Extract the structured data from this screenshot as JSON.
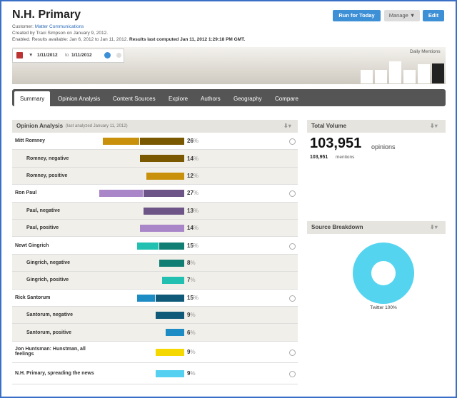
{
  "header": {
    "title": "N.H. Primary",
    "customer_label": "Customer:",
    "customer": "Matter Communications",
    "created": "Created by Traci Simpson on January 9, 2012.",
    "enabled": "Enabled. Results available: Jan 6, 2012 to Jan 11, 2012.",
    "computed": "Results last computed Jan 11, 2012 1:29:18 PM GMT.",
    "buttons": [
      "Run for Today",
      "Manage ▼",
      "Edit"
    ]
  },
  "date_range": {
    "from": "1/11/2012",
    "to_label": "to",
    "to": "1/11/2012",
    "sparkline_label": "Daily Mentions",
    "sparkline": [
      19,
      19,
      31,
      19,
      27,
      28
    ]
  },
  "tabs": [
    "Summary",
    "Opinion Analysis",
    "Content Sources",
    "Explore",
    "Authors",
    "Geography",
    "Compare"
  ],
  "opinion": {
    "title": "Opinion Analysis",
    "subtitle": "(last analyzed January 11, 2012)",
    "unit": "%",
    "groups": [
      {
        "label": "Mitt Romney",
        "value": 26,
        "parts": [
          {
            "label": "Romney, negative",
            "value": 14,
            "color": "#7a5800"
          },
          {
            "label": "Romney, positive",
            "value": 12,
            "color": "#c8900b"
          }
        ]
      },
      {
        "label": "Ron Paul",
        "value": 27,
        "parts": [
          {
            "label": "Paul, negative",
            "value": 13,
            "color": "#6d5588"
          },
          {
            "label": "Paul, positive",
            "value": 14,
            "color": "#a886c8"
          }
        ]
      },
      {
        "label": "Newt Gingrich",
        "value": 15,
        "parts": [
          {
            "label": "Gingrich, negative",
            "value": 8,
            "color": "#117e74"
          },
          {
            "label": "Gingrich, positive",
            "value": 7,
            "color": "#22c0b0"
          }
        ]
      },
      {
        "label": "Rick Santorum",
        "value": 15,
        "parts": [
          {
            "label": "Santorum, negative",
            "value": 9,
            "color": "#0f5a78"
          },
          {
            "label": "Santorum, positive",
            "value": 6,
            "color": "#1d8cc4"
          }
        ]
      },
      {
        "label": "Jon Huntsman: Hunstman, all feelings",
        "value": 9,
        "color": "#f5d800"
      },
      {
        "label": "N.H. Primary, spreading the news",
        "value": 9,
        "color": "#55d0f0"
      }
    ]
  },
  "total_volume": {
    "title": "Total Volume",
    "opinions": "103,951",
    "opinions_label": "opinions",
    "mentions": "103,951",
    "mentions_label": "mentions"
  },
  "source_breakdown": {
    "title": "Source Breakdown",
    "slices": [
      {
        "name": "Twitter",
        "value": 100,
        "label": "Twitter 100%",
        "color": "#55d4f0"
      }
    ]
  }
}
